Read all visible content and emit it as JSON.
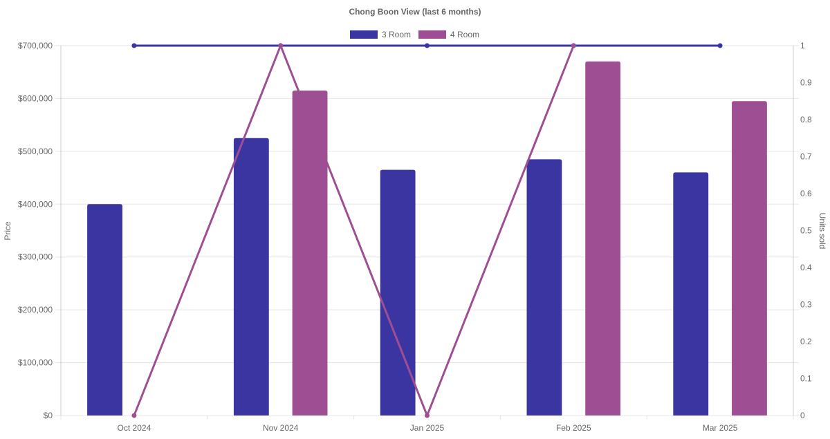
{
  "chart_data": {
    "type": "bar",
    "title": "Chong Boon View (last 6 months)",
    "categories": [
      "Oct 2024",
      "Nov 2024",
      "Jan 2025",
      "Feb 2025",
      "Mar 2025"
    ],
    "y_left": {
      "label": "Price",
      "min": 0,
      "max": 700000,
      "ticks": [
        "$0",
        "$100,000",
        "$200,000",
        "$300,000",
        "$400,000",
        "$500,000",
        "$600,000",
        "$700,000"
      ],
      "tick_values": [
        0,
        100000,
        200000,
        300000,
        400000,
        500000,
        600000,
        700000
      ]
    },
    "y_right": {
      "label": "Units sold",
      "min": 0,
      "max": 1,
      "ticks": [
        "0",
        "0.1",
        "0.2",
        "0.3",
        "0.4",
        "0.5",
        "0.6",
        "0.7",
        "0.8",
        "0.9",
        "1"
      ],
      "tick_values": [
        0,
        0.1,
        0.2,
        0.3,
        0.4,
        0.5,
        0.6,
        0.7,
        0.8,
        0.9,
        1
      ]
    },
    "bar_series": [
      {
        "name": "3 Room",
        "color": "#3a35a0",
        "values": [
          400000,
          525000,
          465000,
          485000,
          460000
        ]
      },
      {
        "name": "4 Room",
        "color": "#9e4f93",
        "values": [
          null,
          615000,
          null,
          670000,
          595000
        ]
      }
    ],
    "line_series": [
      {
        "color": "#3a35a0",
        "values": [
          1,
          1,
          1,
          1,
          1
        ]
      },
      {
        "color": "#9e4f93",
        "values": [
          0,
          1,
          0,
          1,
          null
        ]
      }
    ],
    "legend_position": "top",
    "grid": true
  }
}
